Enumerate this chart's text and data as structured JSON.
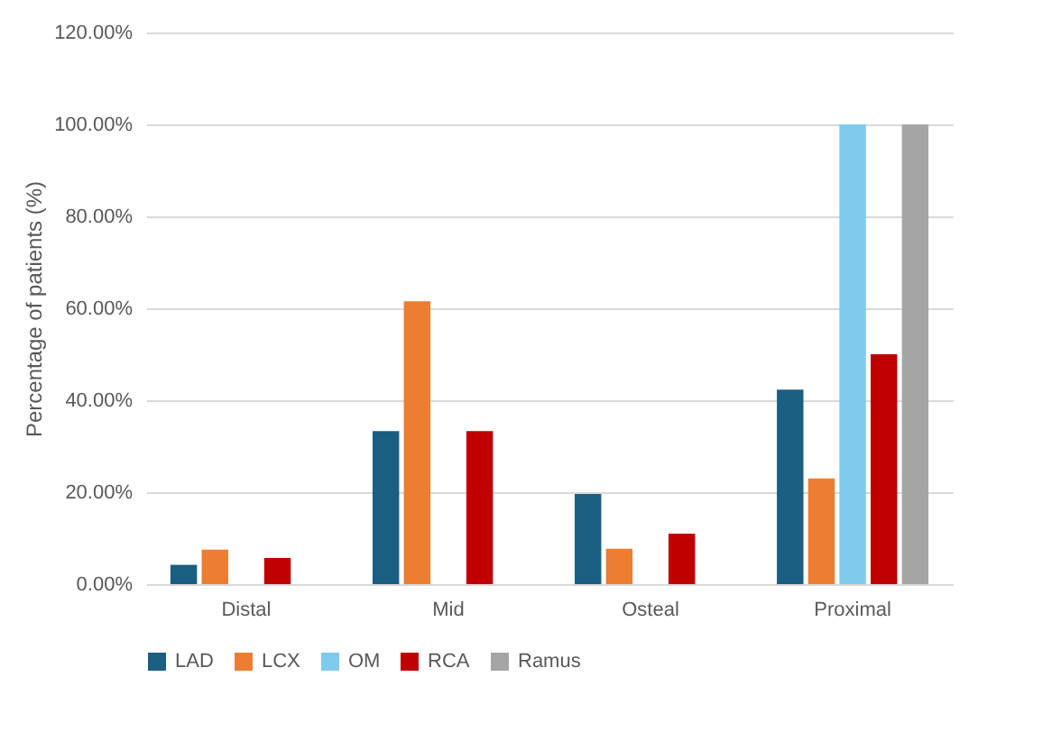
{
  "chart_data": {
    "type": "bar",
    "ylabel": "Percentage of patients (%)",
    "categories": [
      "Distal",
      "Mid",
      "Osteal",
      "Proximal"
    ],
    "series": [
      {
        "name": "LAD",
        "color": "#1a5e82",
        "values": [
          4.2,
          33.3,
          19.6,
          42.3
        ]
      },
      {
        "name": "LCX",
        "color": "#ed7d31",
        "values": [
          7.5,
          61.5,
          7.7,
          23.0
        ]
      },
      {
        "name": "OM",
        "color": "#7ecbed",
        "values": [
          0,
          0,
          0,
          100
        ]
      },
      {
        "name": "RCA",
        "color": "#c00000",
        "values": [
          5.7,
          33.3,
          11.0,
          50.0
        ]
      },
      {
        "name": "Ramus",
        "color": "#a5a5a5",
        "values": [
          0,
          0,
          0,
          100
        ]
      }
    ],
    "ylim": [
      0,
      120
    ],
    "yticks": [
      {
        "value": 0,
        "label": "0.00%"
      },
      {
        "value": 20,
        "label": "20.00%"
      },
      {
        "value": 40,
        "label": "40.00%"
      },
      {
        "value": 60,
        "label": "60.00%"
      },
      {
        "value": 80,
        "label": "80.00%"
      },
      {
        "value": 100,
        "label": "100.00%"
      },
      {
        "value": 120,
        "label": "120.00%"
      }
    ],
    "grid": "y",
    "legend": "bottom"
  }
}
